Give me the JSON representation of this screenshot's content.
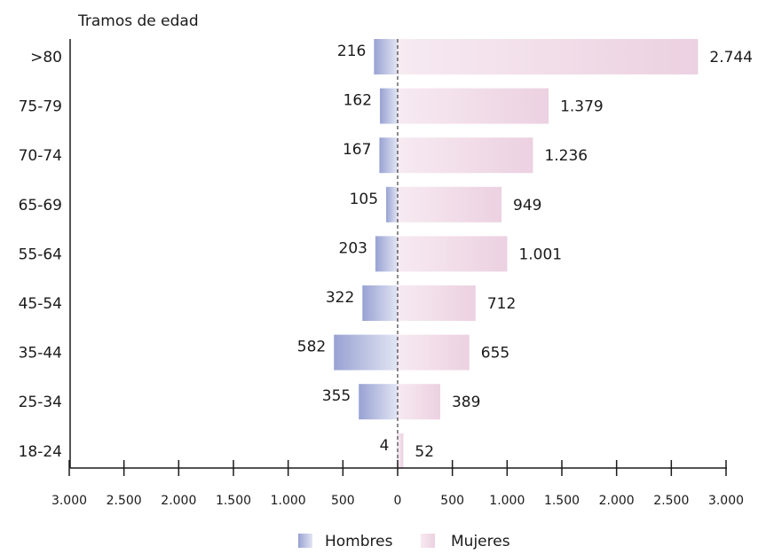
{
  "chart_data": {
    "type": "bar",
    "orientation": "horizontal",
    "subtype": "population-pyramid",
    "title": "Tramos de edad",
    "categories": [
      ">80",
      "75-79",
      "70-74",
      "65-69",
      "55-64",
      "45-54",
      "35-44",
      "25-34",
      "18-24"
    ],
    "series": [
      {
        "name": "Hombres",
        "values": [
          216,
          162,
          167,
          105,
          203,
          322,
          582,
          355,
          4
        ],
        "value_labels": [
          "216",
          "162",
          "167",
          "105",
          "203",
          "322",
          "582",
          "355",
          "4"
        ],
        "color": "#9aa4d4"
      },
      {
        "name": "Mujeres",
        "values": [
          2744,
          1379,
          1236,
          949,
          1001,
          712,
          655,
          389,
          52
        ],
        "value_labels": [
          "2.744",
          "1.379",
          "1.236",
          "949",
          "1.001",
          "712",
          "655",
          "389",
          "52"
        ],
        "color": "#efd6e4"
      }
    ],
    "x_ticks": [
      -3000,
      -2500,
      -2000,
      -1500,
      -1000,
      -500,
      0,
      500,
      1000,
      1500,
      2000,
      2500,
      3000
    ],
    "x_tick_labels": [
      "3.000",
      "2.500",
      "2.000",
      "1.500",
      "1.000",
      "500",
      "0",
      "500",
      "1.000",
      "1.500",
      "2.000",
      "2.500",
      "3.000"
    ],
    "xlim": [
      -3000,
      3000
    ],
    "grid": false,
    "legend_position": "bottom"
  }
}
